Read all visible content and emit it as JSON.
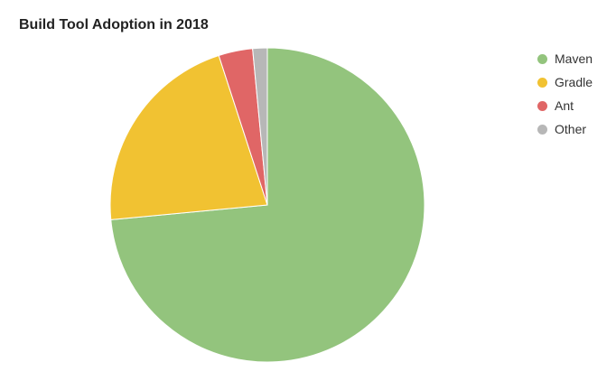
{
  "chart_data": {
    "type": "pie",
    "title": "Build Tool Adoption in 2018",
    "legend_position": "top-right",
    "slices": [
      {
        "name": "Maven",
        "value": 73.5,
        "color": "#93c47d"
      },
      {
        "name": "Gradle",
        "value": 21.5,
        "color": "#f1c232"
      },
      {
        "name": "Ant",
        "value": 3.5,
        "color": "#e06666"
      },
      {
        "name": "Other",
        "value": 1.5,
        "color": "#b7b7b7"
      }
    ]
  }
}
